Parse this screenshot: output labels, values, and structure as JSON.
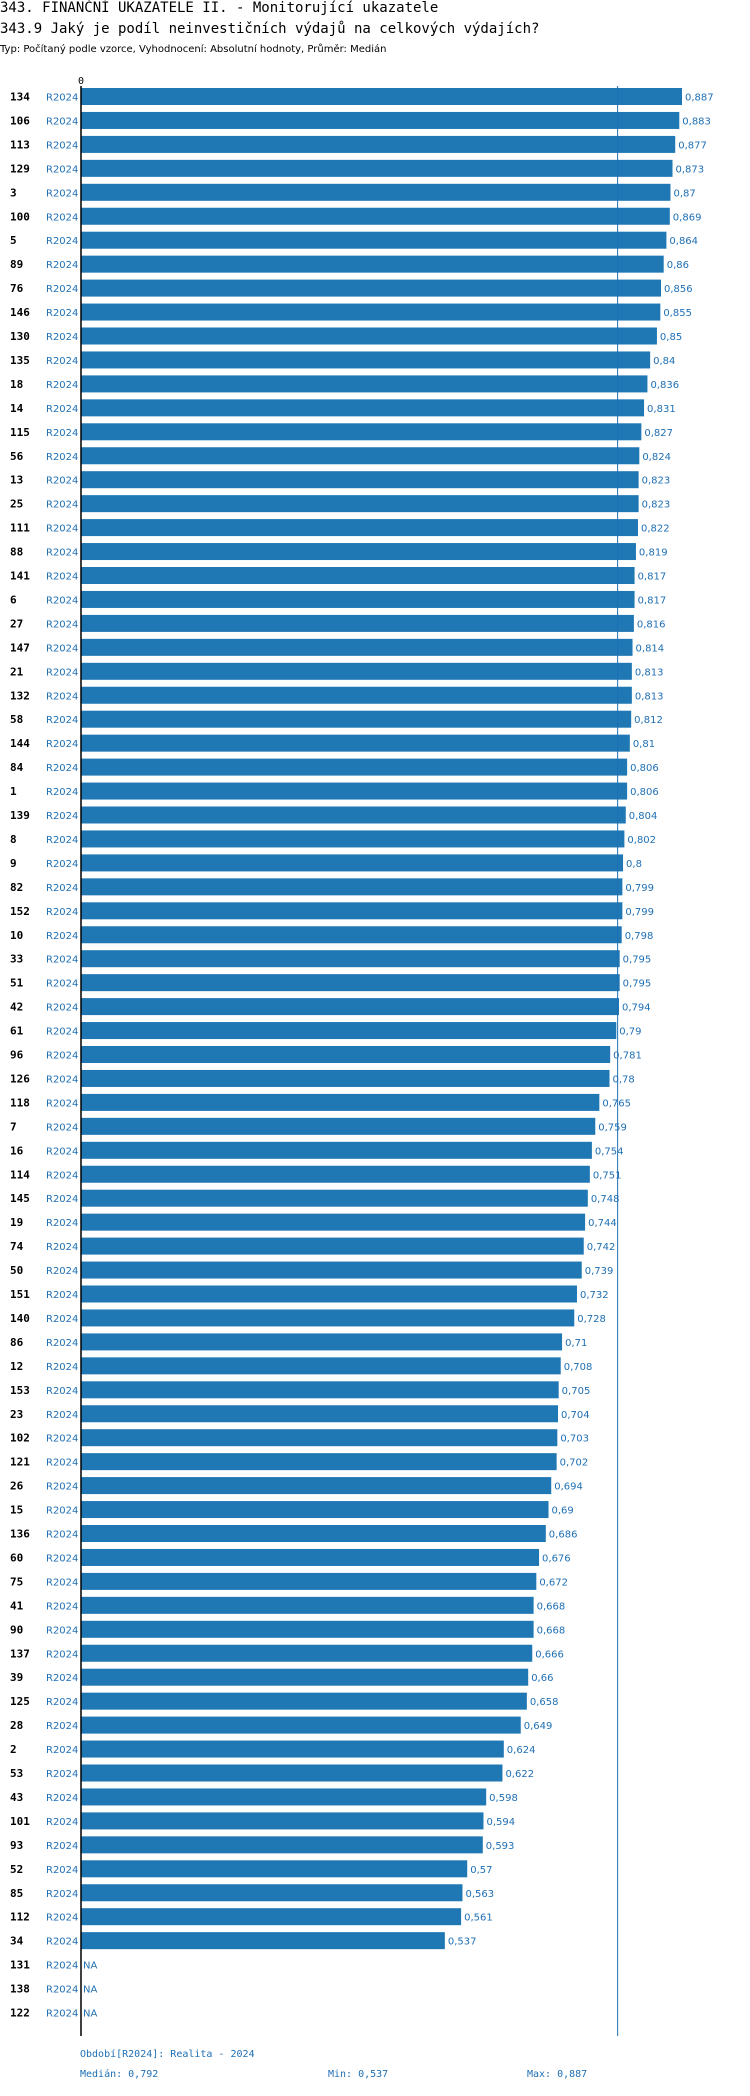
{
  "header": {
    "title1": "343. FINANČNÍ UKAZATELE II. - Monitorující ukazatele",
    "title2": "343.9 Jaký je podíl neinvestičních výdajů na celkových výdajích?",
    "subtitle": "Typ: Počítaný podle vzorce, Vyhodnocení: Absolutní hodnoty, Průměr: Medián"
  },
  "footer": {
    "period": "Období[R2024]: Realita - 2024",
    "median": "Medián: 0,792",
    "min": "Min: 0,537",
    "max": "Max: 0,887"
  },
  "colors": {
    "bar": "#1f77b4",
    "text_blue": "#1f6fb4",
    "axis": "#000000",
    "median_line": "#1f6fb4"
  },
  "chart_data": {
    "type": "bar",
    "orientation": "horizontal",
    "axis_zero_label": "0",
    "period_label": "R2024",
    "median": 0.792,
    "min": 0.537,
    "max": 0.887,
    "xlim": [
      0,
      0.887
    ],
    "rows": [
      {
        "id": "134",
        "value": 0.887,
        "label": "0,887"
      },
      {
        "id": "106",
        "value": 0.883,
        "label": "0,883"
      },
      {
        "id": "113",
        "value": 0.877,
        "label": "0,877"
      },
      {
        "id": "129",
        "value": 0.873,
        "label": "0,873"
      },
      {
        "id": "3",
        "value": 0.87,
        "label": "0,87"
      },
      {
        "id": "100",
        "value": 0.869,
        "label": "0,869"
      },
      {
        "id": "5",
        "value": 0.864,
        "label": "0,864"
      },
      {
        "id": "89",
        "value": 0.86,
        "label": "0,86"
      },
      {
        "id": "76",
        "value": 0.856,
        "label": "0,856"
      },
      {
        "id": "146",
        "value": 0.855,
        "label": "0,855"
      },
      {
        "id": "130",
        "value": 0.85,
        "label": "0,85"
      },
      {
        "id": "135",
        "value": 0.84,
        "label": "0,84"
      },
      {
        "id": "18",
        "value": 0.836,
        "label": "0,836"
      },
      {
        "id": "14",
        "value": 0.831,
        "label": "0,831"
      },
      {
        "id": "115",
        "value": 0.827,
        "label": "0,827"
      },
      {
        "id": "56",
        "value": 0.824,
        "label": "0,824"
      },
      {
        "id": "13",
        "value": 0.823,
        "label": "0,823"
      },
      {
        "id": "25",
        "value": 0.823,
        "label": "0,823"
      },
      {
        "id": "111",
        "value": 0.822,
        "label": "0,822"
      },
      {
        "id": "88",
        "value": 0.819,
        "label": "0,819"
      },
      {
        "id": "141",
        "value": 0.817,
        "label": "0,817"
      },
      {
        "id": "6",
        "value": 0.817,
        "label": "0,817"
      },
      {
        "id": "27",
        "value": 0.816,
        "label": "0,816"
      },
      {
        "id": "147",
        "value": 0.814,
        "label": "0,814"
      },
      {
        "id": "21",
        "value": 0.813,
        "label": "0,813"
      },
      {
        "id": "132",
        "value": 0.813,
        "label": "0,813"
      },
      {
        "id": "58",
        "value": 0.812,
        "label": "0,812"
      },
      {
        "id": "144",
        "value": 0.81,
        "label": "0,81"
      },
      {
        "id": "84",
        "value": 0.806,
        "label": "0,806"
      },
      {
        "id": "1",
        "value": 0.806,
        "label": "0,806"
      },
      {
        "id": "139",
        "value": 0.804,
        "label": "0,804"
      },
      {
        "id": "8",
        "value": 0.802,
        "label": "0,802"
      },
      {
        "id": "9",
        "value": 0.8,
        "label": "0,8"
      },
      {
        "id": "82",
        "value": 0.799,
        "label": "0,799"
      },
      {
        "id": "152",
        "value": 0.799,
        "label": "0,799"
      },
      {
        "id": "10",
        "value": 0.798,
        "label": "0,798"
      },
      {
        "id": "33",
        "value": 0.795,
        "label": "0,795"
      },
      {
        "id": "51",
        "value": 0.795,
        "label": "0,795"
      },
      {
        "id": "42",
        "value": 0.794,
        "label": "0,794"
      },
      {
        "id": "61",
        "value": 0.79,
        "label": "0,79"
      },
      {
        "id": "96",
        "value": 0.781,
        "label": "0,781"
      },
      {
        "id": "126",
        "value": 0.78,
        "label": "0,78"
      },
      {
        "id": "118",
        "value": 0.765,
        "label": "0,765"
      },
      {
        "id": "7",
        "value": 0.759,
        "label": "0,759"
      },
      {
        "id": "16",
        "value": 0.754,
        "label": "0,754"
      },
      {
        "id": "114",
        "value": 0.751,
        "label": "0,751"
      },
      {
        "id": "145",
        "value": 0.748,
        "label": "0,748"
      },
      {
        "id": "19",
        "value": 0.744,
        "label": "0,744"
      },
      {
        "id": "74",
        "value": 0.742,
        "label": "0,742"
      },
      {
        "id": "50",
        "value": 0.739,
        "label": "0,739"
      },
      {
        "id": "151",
        "value": 0.732,
        "label": "0,732"
      },
      {
        "id": "140",
        "value": 0.728,
        "label": "0,728"
      },
      {
        "id": "86",
        "value": 0.71,
        "label": "0,71"
      },
      {
        "id": "12",
        "value": 0.708,
        "label": "0,708"
      },
      {
        "id": "153",
        "value": 0.705,
        "label": "0,705"
      },
      {
        "id": "23",
        "value": 0.704,
        "label": "0,704"
      },
      {
        "id": "102",
        "value": 0.703,
        "label": "0,703"
      },
      {
        "id": "121",
        "value": 0.702,
        "label": "0,702"
      },
      {
        "id": "26",
        "value": 0.694,
        "label": "0,694"
      },
      {
        "id": "15",
        "value": 0.69,
        "label": "0,69"
      },
      {
        "id": "136",
        "value": 0.686,
        "label": "0,686"
      },
      {
        "id": "60",
        "value": 0.676,
        "label": "0,676"
      },
      {
        "id": "75",
        "value": 0.672,
        "label": "0,672"
      },
      {
        "id": "41",
        "value": 0.668,
        "label": "0,668"
      },
      {
        "id": "90",
        "value": 0.668,
        "label": "0,668"
      },
      {
        "id": "137",
        "value": 0.666,
        "label": "0,666"
      },
      {
        "id": "39",
        "value": 0.66,
        "label": "0,66"
      },
      {
        "id": "125",
        "value": 0.658,
        "label": "0,658"
      },
      {
        "id": "28",
        "value": 0.649,
        "label": "0,649"
      },
      {
        "id": "2",
        "value": 0.624,
        "label": "0,624"
      },
      {
        "id": "53",
        "value": 0.622,
        "label": "0,622"
      },
      {
        "id": "43",
        "value": 0.598,
        "label": "0,598"
      },
      {
        "id": "101",
        "value": 0.594,
        "label": "0,594"
      },
      {
        "id": "93",
        "value": 0.593,
        "label": "0,593"
      },
      {
        "id": "52",
        "value": 0.57,
        "label": "0,57"
      },
      {
        "id": "85",
        "value": 0.563,
        "label": "0,563"
      },
      {
        "id": "112",
        "value": 0.561,
        "label": "0,561"
      },
      {
        "id": "34",
        "value": 0.537,
        "label": "0,537"
      },
      {
        "id": "131",
        "value": null,
        "label": "NA"
      },
      {
        "id": "138",
        "value": null,
        "label": "NA"
      },
      {
        "id": "122",
        "value": null,
        "label": "NA"
      }
    ]
  }
}
